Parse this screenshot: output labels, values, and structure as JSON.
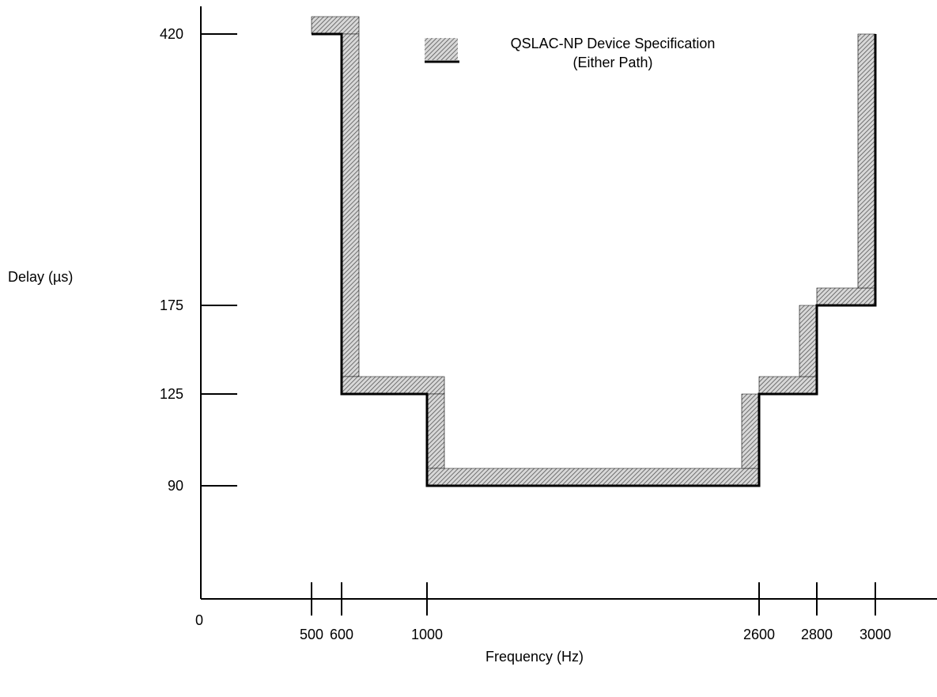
{
  "chart_data": {
    "type": "line",
    "title": "",
    "xlabel": "Frequency (Hz)",
    "ylabel": "Delay (µs)",
    "origin_label": "0",
    "x_ticks": [
      500,
      600,
      1000,
      2600,
      2800,
      3000
    ],
    "y_ticks": [
      90,
      125,
      175,
      420
    ],
    "legend": {
      "placement": "top-center",
      "lines": [
        "QSLAC-NP Device Specification",
        "(Either Path)"
      ]
    },
    "series": [
      {
        "name": "QSLAC-NP Device Specification (Either Path)",
        "style": "hatched-boundary",
        "points": [
          {
            "x": 500,
            "y": 420
          },
          {
            "x": 600,
            "y": 420
          },
          {
            "x": 600,
            "y": 125
          },
          {
            "x": 1000,
            "y": 125
          },
          {
            "x": 1000,
            "y": 90
          },
          {
            "x": 2600,
            "y": 90
          },
          {
            "x": 2600,
            "y": 125
          },
          {
            "x": 2800,
            "y": 125
          },
          {
            "x": 2800,
            "y": 175
          },
          {
            "x": 3000,
            "y": 175
          },
          {
            "x": 3000,
            "y": 420
          }
        ]
      }
    ],
    "grid": false
  }
}
